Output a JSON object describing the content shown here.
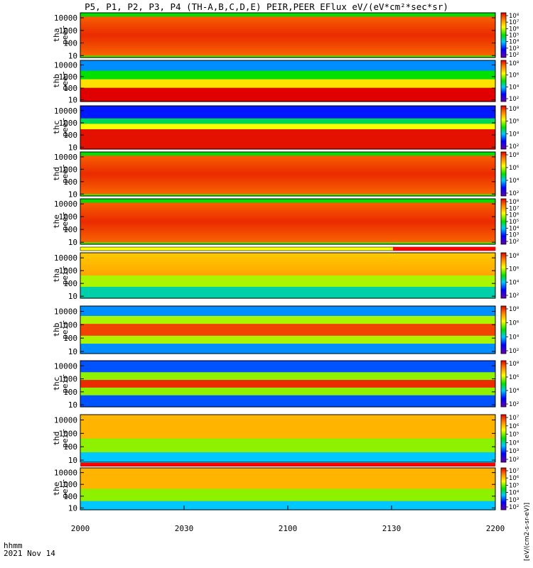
{
  "title": "P5, P1, P2, P3, P4 (TH-A,B,C,D,E) PEIR,PEER EFlux eV/(eV*cm²*sec*sr)",
  "footer": {
    "unit_label": "hhmm",
    "date": "2021 Nov 14"
  },
  "colorbar_unit_label": "[eV/(cm2-s-sr-eV)]",
  "colors": {
    "background": "#ffffff",
    "separator_red": "#ff0000"
  },
  "chart_data": {
    "type": "heatmap",
    "x_axis": {
      "label": "hhmm",
      "ticks": [
        "2000",
        "2030",
        "2100",
        "2130",
        "2200"
      ],
      "range": [
        "2000",
        "2200"
      ]
    },
    "y_scale": "log",
    "colormap": "rainbow",
    "panels": [
      {
        "id": "tha_peer",
        "label": [
          "tha",
          "peer"
        ],
        "yticks": [
          "10",
          "100",
          "1000",
          "10000"
        ],
        "cbar_ticks": [
          "10⁸",
          "10⁷",
          "10⁶",
          "10⁵",
          "10⁴",
          "10³",
          "10²"
        ]
      },
      {
        "id": "thb_peer",
        "label": [
          "thb",
          "peer"
        ],
        "yticks": [
          "10",
          "100",
          "1000",
          "10000"
        ],
        "cbar_ticks": [
          "10⁸",
          "10⁶",
          "10⁴",
          "10²"
        ]
      },
      {
        "id": "thc_peer",
        "label": [
          "thc",
          "peer"
        ],
        "yticks": [
          "10",
          "100",
          "1000",
          "10000"
        ],
        "cbar_ticks": [
          "10⁸",
          "10⁶",
          "10⁴",
          "10²"
        ]
      },
      {
        "id": "thd_peer",
        "label": [
          "thd",
          "peer"
        ],
        "yticks": [
          "10",
          "100",
          "1000",
          "10000"
        ],
        "cbar_ticks": [
          "10⁸",
          "10⁶",
          "10⁴",
          "10²"
        ]
      },
      {
        "id": "the_peer",
        "label": [
          "the",
          "peer"
        ],
        "yticks": [
          "10",
          "100",
          "1000",
          "10000"
        ],
        "cbar_ticks": [
          "10⁸",
          "10⁷",
          "10⁶",
          "10⁵",
          "10⁴",
          "10³",
          "10²"
        ]
      },
      {
        "id": "tha_peir",
        "label": [
          "tha",
          "peir"
        ],
        "yticks": [
          "10",
          "100",
          "1000",
          "10000"
        ],
        "cbar_ticks": [
          "10⁸",
          "10⁶",
          "10⁴",
          "10²"
        ]
      },
      {
        "id": "thb_peir",
        "label": [
          "thb",
          "peir"
        ],
        "yticks": [
          "10",
          "100",
          "1000",
          "10000"
        ],
        "cbar_ticks": [
          "10⁸",
          "10⁶",
          "10⁴",
          "10²"
        ]
      },
      {
        "id": "thc_peir",
        "label": [
          "thc",
          "peir"
        ],
        "yticks": [
          "10",
          "100",
          "1000",
          "10000"
        ],
        "cbar_ticks": [
          "10⁸",
          "10⁶",
          "10⁴",
          "10²"
        ]
      },
      {
        "id": "thd_peir",
        "label": [
          "thd",
          "peir"
        ],
        "yticks": [
          "10",
          "100",
          "1000",
          "10000"
        ],
        "cbar_ticks": [
          "10⁷",
          "10⁶",
          "10⁵",
          "10⁴",
          "10³",
          "10²"
        ]
      },
      {
        "id": "the_peir",
        "label": [
          "the",
          "peir"
        ],
        "yticks": [
          "10",
          "100",
          "1000",
          "10000"
        ],
        "cbar_ticks": [
          "10⁷",
          "10⁶",
          "10⁵",
          "10⁴",
          "10³",
          "10²"
        ]
      }
    ]
  }
}
